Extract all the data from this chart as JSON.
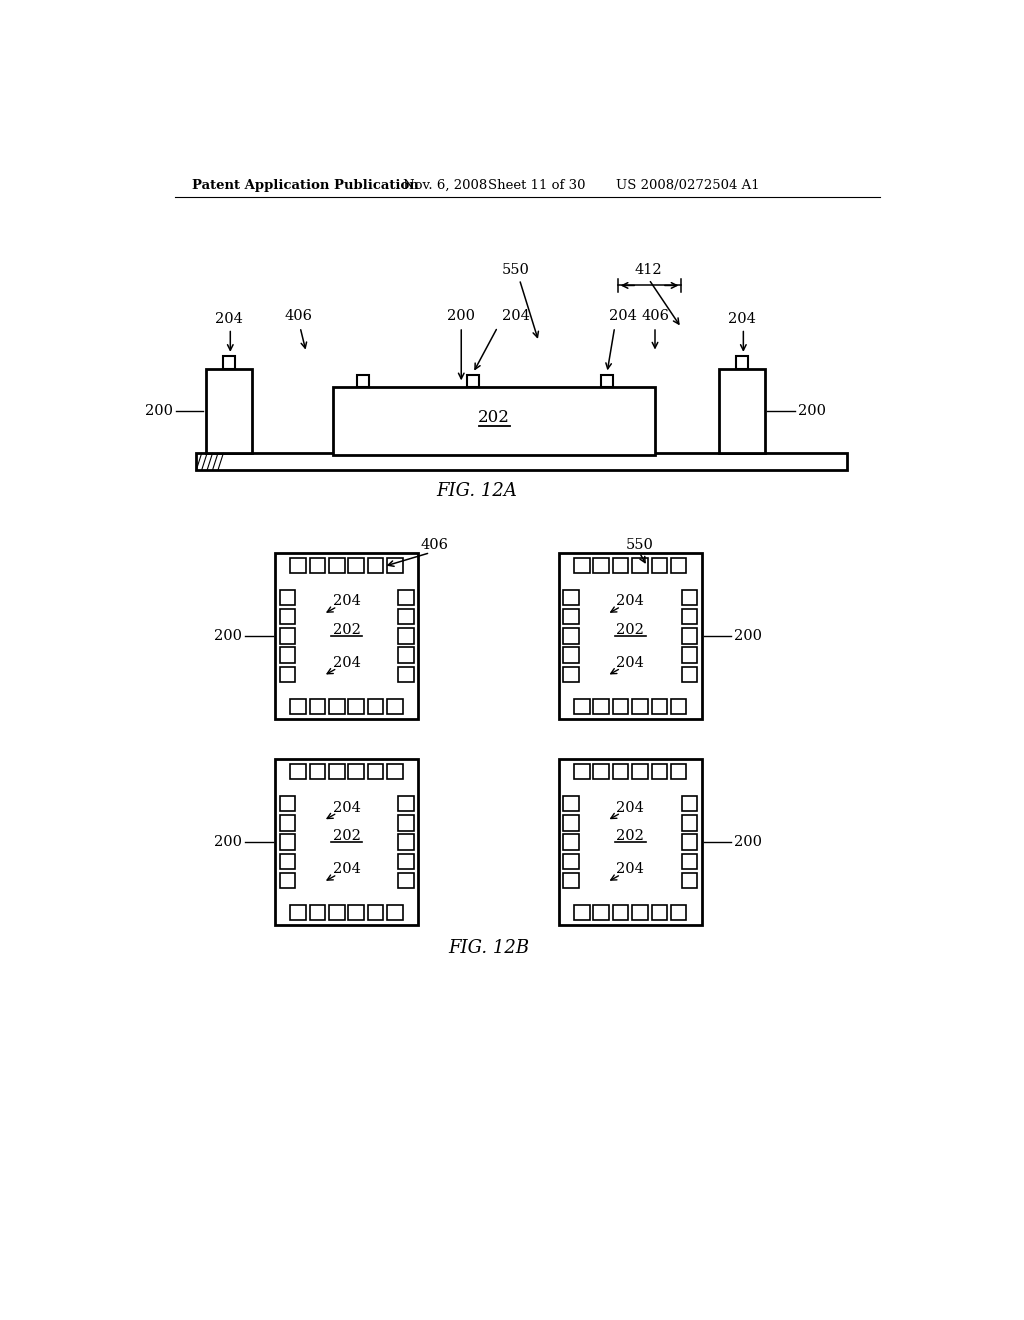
{
  "bg_color": "#ffffff",
  "header_text": "Patent Application Publication",
  "header_date": "Nov. 6, 2008",
  "header_sheet": "Sheet 11 of 30",
  "header_patent": "US 2008/0272504 A1",
  "fig12a_label": "FIG. 12A",
  "fig12b_label": "FIG. 12B",
  "line_color": "#000000",
  "label_color": "#000000"
}
